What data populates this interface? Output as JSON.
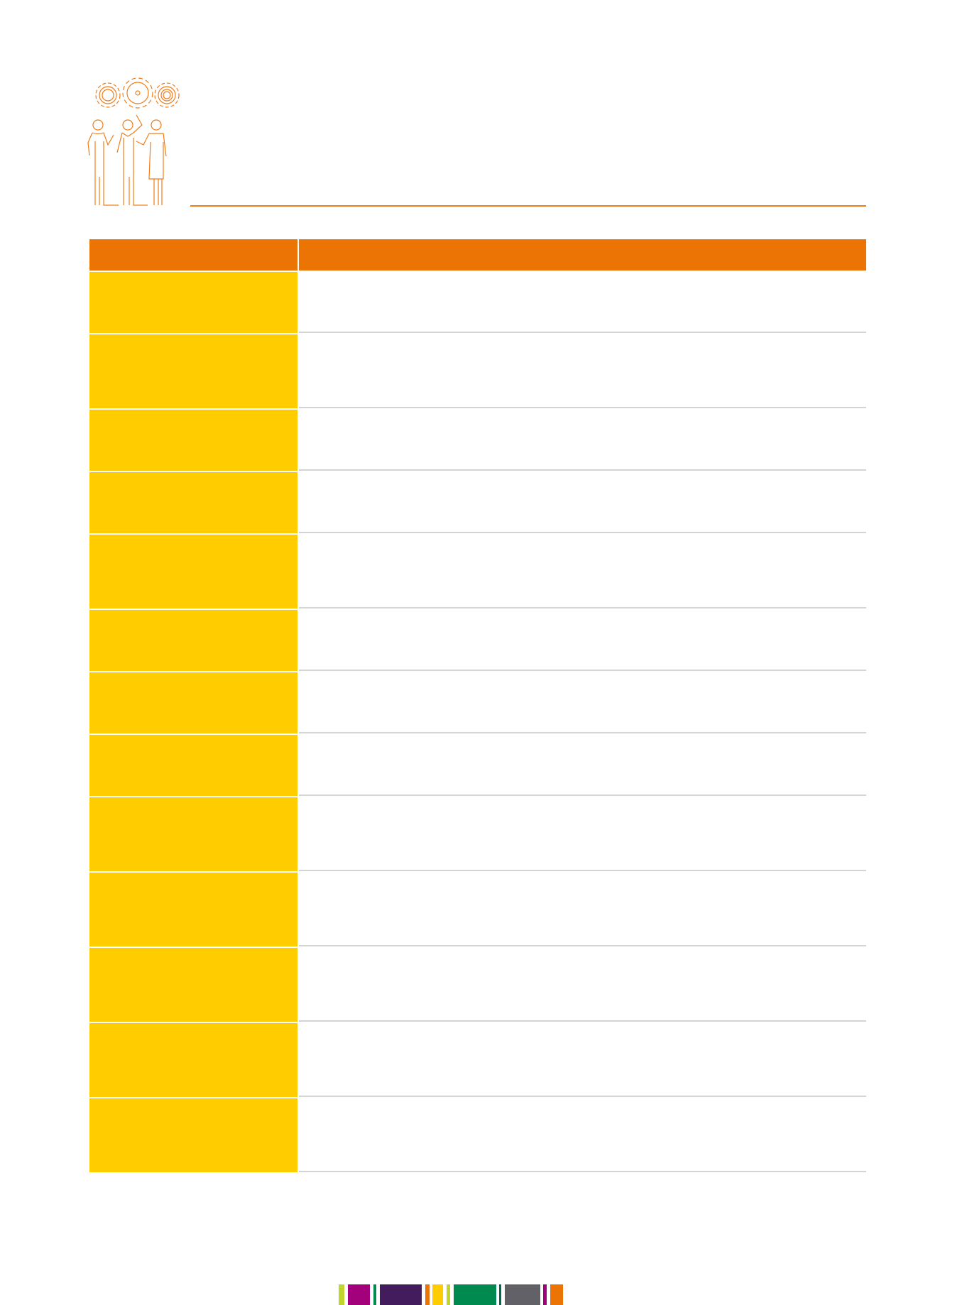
{
  "colors": {
    "header": "#ec7405",
    "first_column": "#ffcc00",
    "row_divider": "#d3d4d6",
    "icon_stroke": "#ef7d1a"
  },
  "table": {
    "columns": [
      "",
      ""
    ],
    "rows": [
      [
        "",
        ""
      ],
      [
        "",
        ""
      ],
      [
        "",
        ""
      ],
      [
        "",
        ""
      ],
      [
        "",
        ""
      ],
      [
        "",
        ""
      ],
      [
        "",
        ""
      ],
      [
        "",
        ""
      ],
      [
        "",
        ""
      ],
      [
        "",
        ""
      ],
      [
        "",
        ""
      ],
      [
        "",
        ""
      ],
      [
        "",
        ""
      ]
    ]
  },
  "footer_strip_colors": [
    "#c1d52f",
    "#a3007c",
    "#008a50",
    "#421c5c",
    "#ec7405",
    "#ffcc00",
    "#c1d52f",
    "#008a50",
    "#006a50",
    "#636168",
    "#a3007c",
    "#ec7405"
  ]
}
